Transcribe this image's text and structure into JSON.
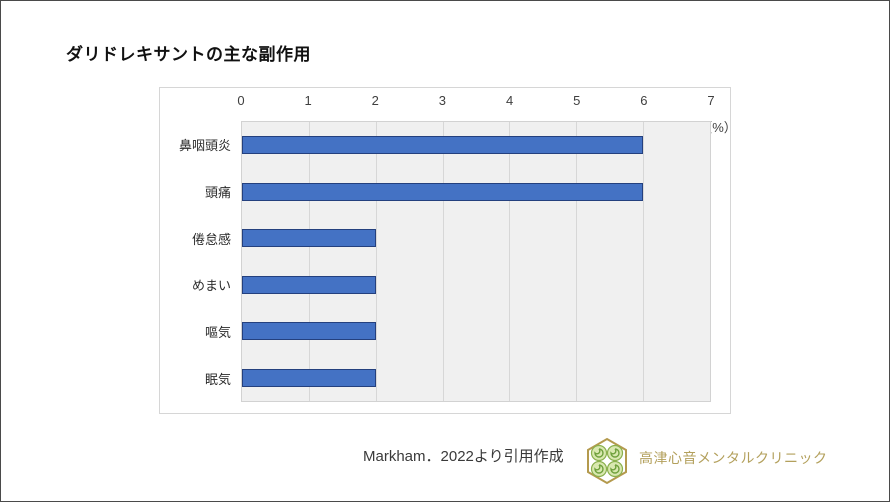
{
  "title": "ダリドレキサントの主な副作用",
  "chart_data": {
    "type": "bar",
    "orientation": "horizontal",
    "title": "ダリドレキサントの主な副作用",
    "categories": [
      "鼻咽頭炎",
      "頭痛",
      "倦怠感",
      "めまい",
      "嘔気",
      "眠気"
    ],
    "values": [
      6,
      6,
      2,
      2,
      2,
      2
    ],
    "xlabel": "",
    "ylabel": "",
    "unit_label": "（%）",
    "xlim": [
      0,
      7
    ],
    "ticks": [
      0,
      1,
      2,
      3,
      4,
      5,
      6,
      7
    ],
    "grid": "vertical-only",
    "legend": "none",
    "axis_position": "top",
    "colors": {
      "bar_fill": "#4472c4",
      "bar_border": "#24407e",
      "plot_background": "#f0f0f0",
      "gridline": "#d7d7d7"
    }
  },
  "footer": {
    "citation": "Markham．2022より引用作成",
    "clinic_name": "高津心音メンタルクリニック",
    "logo": {
      "icon_name": "clover-hexagon-logo-icon",
      "hex_stroke": "#b49a4e",
      "leaf_light": "#d9e8b0",
      "leaf_dark": "#6fa03c",
      "text_color": "#b3a05c"
    }
  }
}
